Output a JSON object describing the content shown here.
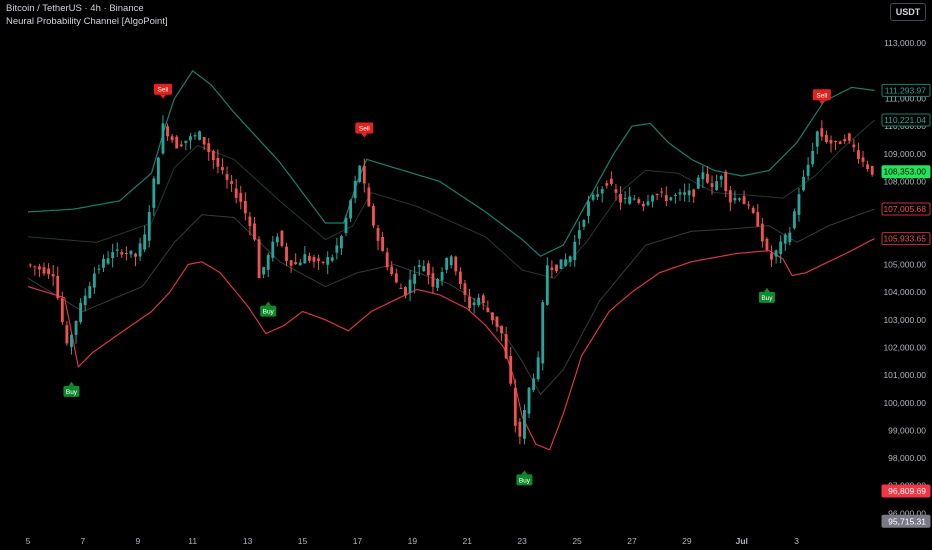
{
  "header": {
    "symbol_line": "Bitcoin / TetherUS · 4h · Binance",
    "indicator_name": "Neural Probability Channel [AlgoPoint]"
  },
  "currency_button": "USDT",
  "colors": {
    "background": "#000000",
    "bull": "#26a69a",
    "bear": "#ef5350",
    "upper_band": "#17806c",
    "lower_band": "#d9344a",
    "mid_upper": "#1f3b32",
    "mid_lower": "#3a3a3a",
    "buy_label": "#0f8a2a",
    "sell_label": "#e0231f",
    "axis_text": "#b2b5be",
    "last_price_bg": "#22e35a"
  },
  "chart_data": {
    "type": "candlestick",
    "ylim": [
      95400,
      114200
    ],
    "y_ticks": [
      {
        "value": 113000,
        "label": "113,000.00"
      },
      {
        "value": 111000,
        "label": "111,000.00"
      },
      {
        "value": 110000,
        "label": "110,000.00"
      },
      {
        "value": 109000,
        "label": "109,000.00"
      },
      {
        "value": 108000,
        "label": "108,000.00"
      },
      {
        "value": 105000,
        "label": "105,000.00"
      },
      {
        "value": 104000,
        "label": "104,000.00"
      },
      {
        "value": 103000,
        "label": "103,000.00"
      },
      {
        "value": 102000,
        "label": "102,000.00"
      },
      {
        "value": 101000,
        "label": "101,000.00"
      },
      {
        "value": 100000,
        "label": "100,000.00"
      },
      {
        "value": 99000,
        "label": "99,000.00"
      },
      {
        "value": 98000,
        "label": "98,000.00"
      },
      {
        "value": 97000,
        "label": "97,000.00"
      },
      {
        "value": 96000,
        "label": "96,000.00"
      }
    ],
    "x_ticks": [
      {
        "label": "5",
        "t": 0
      },
      {
        "label": "7",
        "t": 12
      },
      {
        "label": "9",
        "t": 24
      },
      {
        "label": "11",
        "t": 36
      },
      {
        "label": "13",
        "t": 48
      },
      {
        "label": "15",
        "t": 60
      },
      {
        "label": "17",
        "t": 72
      },
      {
        "label": "19",
        "t": 84
      },
      {
        "label": "21",
        "t": 96
      },
      {
        "label": "23",
        "t": 108
      },
      {
        "label": "25",
        "t": 120
      },
      {
        "label": "27",
        "t": 132
      },
      {
        "label": "29",
        "t": 144
      },
      {
        "label": "Jul",
        "t": 156
      },
      {
        "label": "3",
        "t": 168
      }
    ],
    "price_tags": [
      {
        "value": 111294,
        "label": "111,293.97",
        "style": "outline-green"
      },
      {
        "value": 110221,
        "label": "110,221.04",
        "style": "outline-green"
      },
      {
        "value": 108353,
        "label": "108,353.00",
        "style": "filled-green"
      },
      {
        "value": 107006,
        "label": "107,005.68",
        "style": "outline-red"
      },
      {
        "value": 105934,
        "label": "105,933.65",
        "style": "outline-red"
      },
      {
        "value": 96810,
        "label": "96,809.69",
        "style": "filled-red"
      },
      {
        "value": 95715,
        "label": "95,715.31",
        "style": "filled-gray"
      }
    ],
    "price_path": [
      [
        0,
        105000
      ],
      [
        6,
        104700
      ],
      [
        9,
        102000
      ],
      [
        12,
        103500
      ],
      [
        15,
        104700
      ],
      [
        18,
        105300
      ],
      [
        21,
        105500
      ],
      [
        24,
        105300
      ],
      [
        26,
        106000
      ],
      [
        28,
        108000
      ],
      [
        29,
        109000
      ],
      [
        30,
        110000
      ],
      [
        33,
        109300
      ],
      [
        35,
        109500
      ],
      [
        38,
        109700
      ],
      [
        41,
        108800
      ],
      [
        44,
        108000
      ],
      [
        47,
        107300
      ],
      [
        50,
        106000
      ],
      [
        51,
        104500
      ],
      [
        53,
        105300
      ],
      [
        55,
        106100
      ],
      [
        57,
        105200
      ],
      [
        59,
        105000
      ],
      [
        61,
        105300
      ],
      [
        64,
        105000
      ],
      [
        67,
        105300
      ],
      [
        69,
        106000
      ],
      [
        71,
        107300
      ],
      [
        73,
        108600
      ],
      [
        75,
        107000
      ],
      [
        77,
        105900
      ],
      [
        79,
        105000
      ],
      [
        81,
        104300
      ],
      [
        83,
        104000
      ],
      [
        85,
        104800
      ],
      [
        87,
        105000
      ],
      [
        89,
        104300
      ],
      [
        91,
        104800
      ],
      [
        93,
        105400
      ],
      [
        95,
        104200
      ],
      [
        97,
        103500
      ],
      [
        99,
        103800
      ],
      [
        101,
        103300
      ],
      [
        103,
        102800
      ],
      [
        104,
        102500
      ],
      [
        106,
        100600
      ],
      [
        107,
        99200
      ],
      [
        108,
        98800
      ],
      [
        110,
        100500
      ],
      [
        112,
        101500
      ],
      [
        113,
        103500
      ],
      [
        114,
        105000
      ],
      [
        116,
        104900
      ],
      [
        119,
        105300
      ],
      [
        121,
        106300
      ],
      [
        123,
        107200
      ],
      [
        125,
        107600
      ],
      [
        127,
        108000
      ],
      [
        130,
        107300
      ],
      [
        133,
        107400
      ],
      [
        135,
        107200
      ],
      [
        137,
        107600
      ],
      [
        140,
        107400
      ],
      [
        143,
        107500
      ],
      [
        146,
        107600
      ],
      [
        148,
        108400
      ],
      [
        150,
        107700
      ],
      [
        152,
        108300
      ],
      [
        154,
        107300
      ],
      [
        156,
        107500
      ],
      [
        158,
        107000
      ],
      [
        160,
        106500
      ],
      [
        162,
        105400
      ],
      [
        163,
        105200
      ],
      [
        165,
        105700
      ],
      [
        167,
        106200
      ],
      [
        169,
        107600
      ],
      [
        171,
        108600
      ],
      [
        173,
        109800
      ],
      [
        175,
        109500
      ],
      [
        177,
        109300
      ],
      [
        179,
        109600
      ],
      [
        181,
        109200
      ],
      [
        183,
        108700
      ],
      [
        185,
        108353
      ]
    ],
    "bands": {
      "upper": [
        [
          0,
          106900
        ],
        [
          10,
          107000
        ],
        [
          20,
          107300
        ],
        [
          27,
          108300
        ],
        [
          30,
          110000
        ],
        [
          32,
          111000
        ],
        [
          36,
          112000
        ],
        [
          40,
          111500
        ],
        [
          45,
          110500
        ],
        [
          50,
          109600
        ],
        [
          55,
          108700
        ],
        [
          60,
          107600
        ],
        [
          65,
          106500
        ],
        [
          69,
          106500
        ],
        [
          72,
          108000
        ],
        [
          74,
          108800
        ],
        [
          80,
          108500
        ],
        [
          90,
          108000
        ],
        [
          100,
          106900
        ],
        [
          108,
          105900
        ],
        [
          112,
          105300
        ],
        [
          117,
          105700
        ],
        [
          123,
          107500
        ],
        [
          128,
          109000
        ],
        [
          132,
          110000
        ],
        [
          136,
          110100
        ],
        [
          140,
          109400
        ],
        [
          145,
          108800
        ],
        [
          150,
          108400
        ],
        [
          156,
          108200
        ],
        [
          162,
          108400
        ],
        [
          168,
          109400
        ],
        [
          174,
          110900
        ],
        [
          180,
          111400
        ],
        [
          185,
          111294
        ]
      ],
      "mid_upper": [
        [
          0,
          106000
        ],
        [
          15,
          105800
        ],
        [
          27,
          106500
        ],
        [
          32,
          108500
        ],
        [
          37,
          109300
        ],
        [
          45,
          108800
        ],
        [
          55,
          107300
        ],
        [
          65,
          105900
        ],
        [
          71,
          106400
        ],
        [
          75,
          107600
        ],
        [
          85,
          107100
        ],
        [
          100,
          106000
        ],
        [
          108,
          104800
        ],
        [
          115,
          104500
        ],
        [
          122,
          105800
        ],
        [
          130,
          107700
        ],
        [
          135,
          108400
        ],
        [
          142,
          108300
        ],
        [
          150,
          107600
        ],
        [
          158,
          107500
        ],
        [
          165,
          107400
        ],
        [
          172,
          108200
        ],
        [
          178,
          109200
        ],
        [
          185,
          110221
        ]
      ],
      "mid_lower": [
        [
          0,
          104500
        ],
        [
          12,
          103300
        ],
        [
          25,
          104200
        ],
        [
          32,
          105800
        ],
        [
          38,
          106800
        ],
        [
          45,
          106700
        ],
        [
          55,
          105100
        ],
        [
          65,
          104200
        ],
        [
          72,
          104700
        ],
        [
          80,
          105000
        ],
        [
          92,
          104300
        ],
        [
          100,
          103500
        ],
        [
          108,
          101500
        ],
        [
          112,
          100300
        ],
        [
          117,
          101200
        ],
        [
          125,
          103700
        ],
        [
          135,
          105700
        ],
        [
          145,
          106200
        ],
        [
          155,
          106300
        ],
        [
          162,
          106400
        ],
        [
          168,
          105800
        ],
        [
          175,
          106400
        ],
        [
          185,
          107006
        ]
      ],
      "lower": [
        [
          0,
          104200
        ],
        [
          8,
          103800
        ],
        [
          11,
          101300
        ],
        [
          14,
          101800
        ],
        [
          20,
          102500
        ],
        [
          27,
          103300
        ],
        [
          31,
          104000
        ],
        [
          35,
          105000
        ],
        [
          38,
          105100
        ],
        [
          42,
          104700
        ],
        [
          48,
          103500
        ],
        [
          52,
          102500
        ],
        [
          56,
          102800
        ],
        [
          60,
          103300
        ],
        [
          65,
          103000
        ],
        [
          70,
          102600
        ],
        [
          75,
          103300
        ],
        [
          80,
          103700
        ],
        [
          85,
          104100
        ],
        [
          90,
          103900
        ],
        [
          96,
          103400
        ],
        [
          100,
          102800
        ],
        [
          104,
          102000
        ],
        [
          106,
          101000
        ],
        [
          108,
          99500
        ],
        [
          111,
          98500
        ],
        [
          114,
          98300
        ],
        [
          117,
          99600
        ],
        [
          121,
          101700
        ],
        [
          127,
          103300
        ],
        [
          132,
          104000
        ],
        [
          138,
          104700
        ],
        [
          145,
          105100
        ],
        [
          155,
          105400
        ],
        [
          162,
          105500
        ],
        [
          165,
          105200
        ],
        [
          167,
          104600
        ],
        [
          170,
          104700
        ],
        [
          175,
          105100
        ],
        [
          180,
          105500
        ],
        [
          185,
          105934
        ]
      ]
    },
    "signals": [
      {
        "type": "Sell",
        "t": 29,
        "label": "Sell"
      },
      {
        "type": "Sell",
        "t": 73,
        "label": "Sell"
      },
      {
        "type": "Sell",
        "t": 173,
        "label": "Sell"
      },
      {
        "type": "Buy",
        "t": 9,
        "label": "Buy"
      },
      {
        "type": "Buy",
        "t": 52,
        "label": "Buy"
      },
      {
        "type": "Buy",
        "t": 108,
        "label": "Buy"
      },
      {
        "type": "Buy",
        "t": 161,
        "label": "Buy"
      }
    ]
  }
}
